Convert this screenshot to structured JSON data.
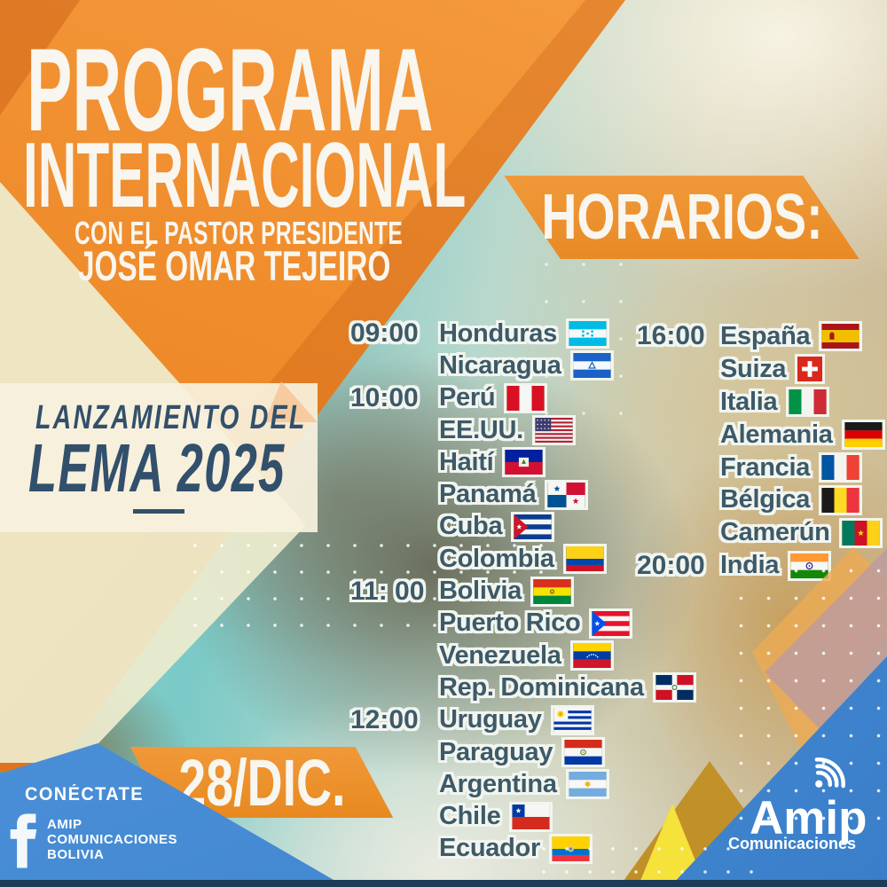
{
  "poster": {
    "title_line1": "PROGRAMA",
    "title_line2": "INTERNACIONAL",
    "subtitle": "CON EL PASTOR PRESIDENTE",
    "pastor_name": "JOSÉ OMAR TEJEIRO",
    "horarios_label": "HORARIOS:",
    "lema": {
      "line1": "LANZAMIENTO DEL",
      "line2": "LEMA 2025"
    },
    "date_banner": "28/DIC.",
    "schedule": {
      "left": [
        {
          "time": "09:00",
          "country": "Honduras",
          "flag": "honduras"
        },
        {
          "time": "",
          "country": "Nicaragua",
          "flag": "nicaragua"
        },
        {
          "time": "10:00",
          "country": "Perú",
          "flag": "peru"
        },
        {
          "time": "",
          "country": "EE.UU.",
          "flag": "usa"
        },
        {
          "time": "",
          "country": "Haití",
          "flag": "haiti"
        },
        {
          "time": "",
          "country": "Panamá",
          "flag": "panama"
        },
        {
          "time": "",
          "country": "Cuba",
          "flag": "cuba"
        },
        {
          "time": "",
          "country": "Colombia",
          "flag": "colombia"
        },
        {
          "time": "11: 00",
          "country": "Bolivia",
          "flag": "bolivia"
        },
        {
          "time": "",
          "country": "Puerto Rico",
          "flag": "puertorico"
        },
        {
          "time": "",
          "country": "Venezuela",
          "flag": "venezuela"
        },
        {
          "time": "",
          "country": "Rep. Dominicana",
          "flag": "dominicana"
        },
        {
          "time": "12:00",
          "country": "Uruguay",
          "flag": "uruguay"
        },
        {
          "time": "",
          "country": "Paraguay",
          "flag": "paraguay"
        },
        {
          "time": "",
          "country": "Argentina",
          "flag": "argentina"
        },
        {
          "time": "",
          "country": "Chile",
          "flag": "chile"
        },
        {
          "time": "",
          "country": "Ecuador",
          "flag": "ecuador"
        }
      ],
      "right": [
        {
          "time": "16:00",
          "country": "España",
          "flag": "espana"
        },
        {
          "time": "",
          "country": "Suiza",
          "flag": "suiza"
        },
        {
          "time": "",
          "country": "Italia",
          "flag": "italia"
        },
        {
          "time": "",
          "country": "Alemania",
          "flag": "alemania"
        },
        {
          "time": "",
          "country": "Francia",
          "flag": "francia"
        },
        {
          "time": "",
          "country": "Bélgica",
          "flag": "belgica"
        },
        {
          "time": "",
          "country": "Camerún",
          "flag": "camerun"
        },
        {
          "time": "20:00",
          "country": "India",
          "flag": "india"
        }
      ]
    },
    "connect": {
      "heading": "CONÉCTATE",
      "network_icon": "facebook-icon",
      "line1": "AMIP",
      "line2": "COMUNICACIONES",
      "line3": "BOLIVIA"
    },
    "brand": {
      "name": "Amip",
      "tagline": "Comunicaciones",
      "icon": "wifi-signal-icon"
    },
    "colors": {
      "orange": "#ef8c2c",
      "banner_orange": "#eb9130",
      "navy": "#2e4a63",
      "schedule_text": "#3d5a68",
      "blue": "#4a90d9",
      "cream_band": "#f6efdc",
      "outline_white": "#f2f5ef"
    }
  }
}
